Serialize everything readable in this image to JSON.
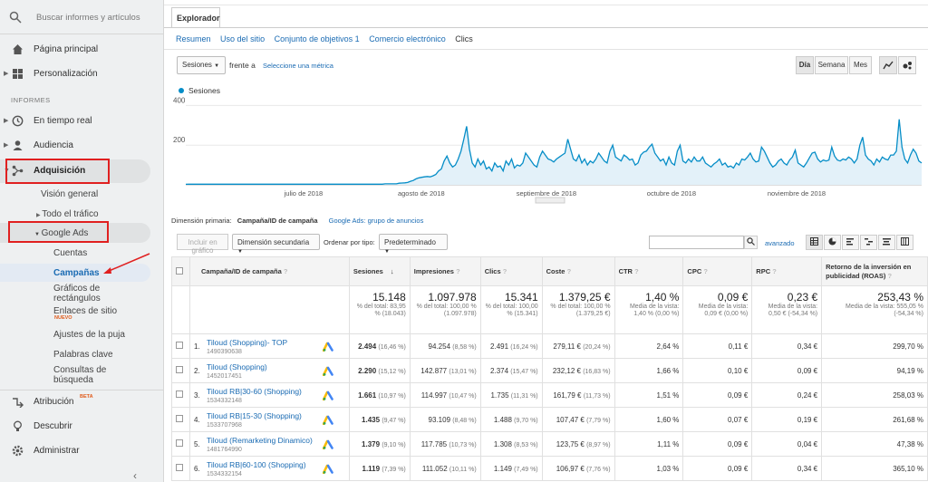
{
  "sidebar": {
    "search_placeholder": "Buscar informes y artículos",
    "home": "Página principal",
    "custom": "Personalización",
    "reports_header": "INFORMES",
    "realtime": "En tiempo real",
    "audience": "Audiencia",
    "acquisition": "Adquisición",
    "overview": "Visión general",
    "all_traffic": "Todo el tráfico",
    "google_ads": "Google Ads",
    "accounts": "Cuentas",
    "campaigns": "Campañas",
    "treemaps": "Gráficos de rectángulos",
    "sitelinks": "Enlaces de sitio",
    "new_badge": "NUEVO",
    "bid_adjust": "Ajustes de la puja",
    "keywords": "Palabras clave",
    "search_queries": "Consultas de búsqueda",
    "attribution": "Atribución",
    "beta": "BETA",
    "discover": "Descubrir",
    "admin": "Administrar"
  },
  "explorer": {
    "tab": "Explorador",
    "subtabs": [
      "Resumen",
      "Uso del sitio",
      "Conjunto de objetivos 1",
      "Comercio electrónico",
      "Clics"
    ],
    "metric_select": "Sesiones",
    "vs": "frente a",
    "select_metric": "Seleccione una métrica",
    "period_buttons": [
      "Día",
      "Semana",
      "Mes"
    ],
    "legend": "Sesiones"
  },
  "chart_data": {
    "type": "area",
    "series": [
      {
        "name": "Sesiones",
        "values": [
          3,
          3,
          3,
          3,
          3,
          3,
          3,
          3,
          3,
          3,
          3,
          3,
          3,
          3,
          3,
          3,
          3,
          3,
          3,
          3,
          3,
          3,
          3,
          3,
          3,
          3,
          3,
          3,
          3,
          3,
          3,
          3,
          3,
          3,
          3,
          3,
          3,
          3,
          3,
          3,
          3,
          3,
          3,
          3,
          3,
          3,
          3,
          3,
          3,
          3,
          3,
          3,
          3,
          3,
          3,
          3,
          3,
          3,
          3,
          3,
          3,
          3,
          3,
          3,
          3,
          3,
          3,
          3,
          3,
          3,
          3,
          5,
          5,
          5,
          5,
          5,
          8,
          9,
          10,
          12,
          18,
          22,
          30,
          35,
          38,
          40,
          42,
          40,
          45,
          52,
          70,
          80,
          120,
          145,
          110,
          90,
          100,
          130,
          170,
          230,
          295,
          180,
          110,
          90,
          130,
          100,
          120,
          80,
          90,
          70,
          110,
          90,
          95,
          70,
          120,
          100,
          130,
          85,
          100,
          95,
          110,
          160,
          140,
          120,
          100,
          90,
          140,
          170,
          150,
          130,
          125,
          115,
          130,
          140,
          150,
          160,
          230,
          180,
          130,
          120,
          150,
          110,
          130,
          100,
          120,
          110,
          130,
          160,
          140,
          120,
          110,
          170,
          200,
          140,
          130,
          120,
          150,
          140,
          125,
          130,
          100,
          110,
          150,
          165,
          170,
          190,
          205,
          160,
          140,
          120,
          130,
          100,
          140,
          110,
          100,
          170,
          200,
          120,
          110,
          130,
          115,
          140,
          120,
          120,
          140,
          110,
          100,
          90,
          105,
          115,
          130,
          100,
          110,
          90,
          95,
          85,
          110,
          100,
          130,
          125,
          140,
          160,
          130,
          115,
          120,
          190,
          170,
          140,
          110,
          90,
          100,
          120,
          130,
          110,
          100,
          125,
          140,
          175,
          110,
          100,
          90,
          110,
          135,
          160,
          165,
          130,
          115,
          125,
          120,
          125,
          190,
          145,
          125,
          120,
          130,
          125,
          140,
          130,
          110,
          130,
          200,
          240,
          150,
          130,
          120,
          100,
          130,
          115,
          140,
          130,
          125,
          150,
          150,
          170,
          330,
          190,
          130,
          110,
          150,
          180,
          160,
          120,
          110
        ]
      }
    ],
    "x_tick_labels": [
      "julio de 2018",
      "agosto de 2018",
      "septiembre de 2018",
      "octubre de 2018",
      "noviembre de 2018"
    ],
    "y_tick_labels": [
      "400",
      "200"
    ],
    "ylim": [
      0,
      420
    ]
  },
  "dimension": {
    "label": "Dimensión primaria:",
    "current": "Campaña/ID de campaña",
    "alt": "Google Ads: grupo de anuncios",
    "plot_rows": "Incluir en gráfico",
    "secondary": "Dimensión secundaria",
    "sort_label": "Ordenar por tipo:",
    "sort_value": "Predeterminado",
    "advanced": "avanzado"
  },
  "table": {
    "headers": [
      "Campaña/ID de campaña",
      "Sesiones",
      "Impresiones",
      "Clics",
      "Coste",
      "CTR",
      "CPC",
      "RPC",
      "Retorno de la inversión en publicidad (ROAS)"
    ],
    "totals": [
      {
        "big": "15.148",
        "sm": "% del total: 83,95 % (18.043)"
      },
      {
        "big": "1.097.978",
        "sm": "% del total: 100,00 % (1.097.978)"
      },
      {
        "big": "15.341",
        "sm": "% del total: 100,00 % (15.341)"
      },
      {
        "big": "1.379,25 €",
        "sm": "% del total: 100,00 % (1.379,25 €)"
      },
      {
        "big": "1,40 %",
        "sm": "Media de la vista: 1,40 % (0,00 %)"
      },
      {
        "big": "0,09 €",
        "sm": "Media de la vista: 0,09 € (0,00 %)"
      },
      {
        "big": "0,23 €",
        "sm": "Media de la vista: 0,50 € (-54,34 %)"
      },
      {
        "big": "253,43 %",
        "sm": "Media de la vista: 555,05 % (-54,34 %)"
      }
    ],
    "rows": [
      {
        "n": "1.",
        "name": "Tiloud (Shopping)- TOP",
        "id": "1490390638",
        "ses": "2.494",
        "sesp": "(16,46 %)",
        "imp": "94.254",
        "impp": "(8,58 %)",
        "clk": "2.491",
        "clkp": "(16,24 %)",
        "cost": "279,11 €",
        "costp": "(20,24 %)",
        "ctr": "2,64 %",
        "cpc": "0,11 €",
        "rpc": "0,34 €",
        "roas": "299,70 %"
      },
      {
        "n": "2.",
        "name": "Tiloud (Shopping)",
        "id": "1452017451",
        "ses": "2.290",
        "sesp": "(15,12 %)",
        "imp": "142.877",
        "impp": "(13,01 %)",
        "clk": "2.374",
        "clkp": "(15,47 %)",
        "cost": "232,12 €",
        "costp": "(16,83 %)",
        "ctr": "1,66 %",
        "cpc": "0,10 €",
        "rpc": "0,09 €",
        "roas": "94,19 %"
      },
      {
        "n": "3.",
        "name": "Tiloud RB|30-60 (Shopping)",
        "id": "1534332148",
        "ses": "1.661",
        "sesp": "(10,97 %)",
        "imp": "114.997",
        "impp": "(10,47 %)",
        "clk": "1.735",
        "clkp": "(11,31 %)",
        "cost": "161,79 €",
        "costp": "(11,73 %)",
        "ctr": "1,51 %",
        "cpc": "0,09 €",
        "rpc": "0,24 €",
        "roas": "258,03 %"
      },
      {
        "n": "4.",
        "name": "Tiloud RB|15-30 (Shopping)",
        "id": "1533707968",
        "ses": "1.435",
        "sesp": "(9,47 %)",
        "imp": "93.109",
        "impp": "(8,48 %)",
        "clk": "1.488",
        "clkp": "(9,70 %)",
        "cost": "107,47 €",
        "costp": "(7,79 %)",
        "ctr": "1,60 %",
        "cpc": "0,07 €",
        "rpc": "0,19 €",
        "roas": "261,68 %"
      },
      {
        "n": "5.",
        "name": "Tiloud (Remarketing Dinamico)",
        "id": "1481764990",
        "ses": "1.379",
        "sesp": "(9,10 %)",
        "imp": "117.785",
        "impp": "(10,73 %)",
        "clk": "1.308",
        "clkp": "(8,53 %)",
        "cost": "123,75 €",
        "costp": "(8,97 %)",
        "ctr": "1,11 %",
        "cpc": "0,09 €",
        "rpc": "0,04 €",
        "roas": "47,38 %"
      },
      {
        "n": "6.",
        "name": "Tiloud RB|60-100 (Shopping)",
        "id": "1534332154",
        "ses": "1.119",
        "sesp": "(7,39 %)",
        "imp": "111.052",
        "impp": "(10,11 %)",
        "clk": "1.149",
        "clkp": "(7,49 %)",
        "cost": "106,97 €",
        "costp": "(7,76 %)",
        "ctr": "1,03 %",
        "cpc": "0,09 €",
        "rpc": "0,34 €",
        "roas": "365,10 %"
      }
    ]
  },
  "colors": {
    "accent": "#058dc7",
    "red_highlight": "#e02020",
    "link": "#1a6bb3"
  }
}
